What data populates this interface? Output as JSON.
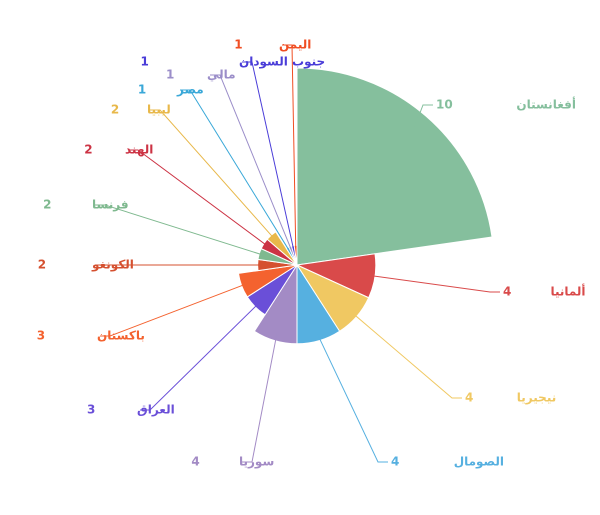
{
  "chart_data": {
    "type": "pie",
    "categories": [
      "أفغانستان",
      "ألمانيا",
      "نيجيريا",
      "الصومال",
      "سوريا",
      "العراق",
      "باكستان",
      "الكونغو",
      "فرنسا",
      "الهند",
      "ليبيا",
      "مصر",
      "مالي",
      "جنوب السودان",
      "اليمن"
    ],
    "values": [
      10,
      4,
      4,
      4,
      4,
      3,
      3,
      2,
      2,
      2,
      2,
      1,
      1,
      1,
      1
    ],
    "colors": [
      "#85bf9d",
      "#d94a4a",
      "#f0c862",
      "#56b0e0",
      "#a38bc5",
      "#6a4fd8",
      "#f4622f",
      "#d5502f",
      "#7fb98f",
      "#cc3344",
      "#e8b84a",
      "#3aa8d8",
      "#9b8ec9",
      "#4a3dd8",
      "#f04e23"
    ]
  }
}
